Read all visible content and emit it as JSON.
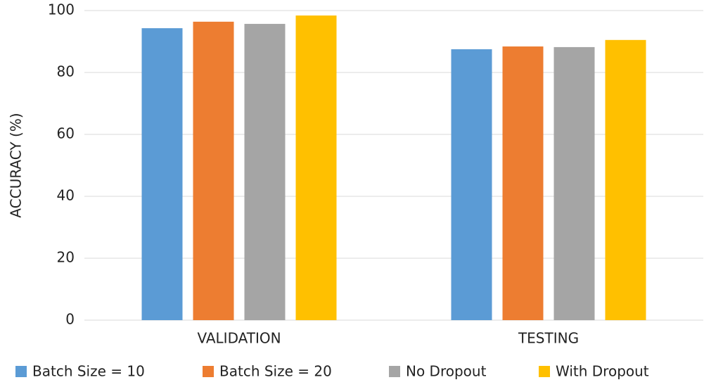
{
  "chart_data": {
    "type": "bar",
    "y_label": "ACCURACY (%)",
    "categories": [
      "VALIDATION",
      "TESTING"
    ],
    "series": [
      {
        "name": "Batch Size = 10",
        "color": "#5b9bd5",
        "values": [
          94.3,
          87.5
        ]
      },
      {
        "name": "Batch Size = 20",
        "color": "#ed7d31",
        "values": [
          96.4,
          88.4
        ]
      },
      {
        "name": "No Dropout",
        "color": "#a5a5a5",
        "values": [
          95.7,
          88.2
        ]
      },
      {
        "name": "With Dropout",
        "color": "#ffc000",
        "values": [
          98.4,
          90.5
        ]
      }
    ],
    "ylim": [
      0,
      100
    ],
    "yticks": [
      0,
      20,
      40,
      60,
      80,
      100
    ],
    "grid": true,
    "legend": "bottom"
  }
}
